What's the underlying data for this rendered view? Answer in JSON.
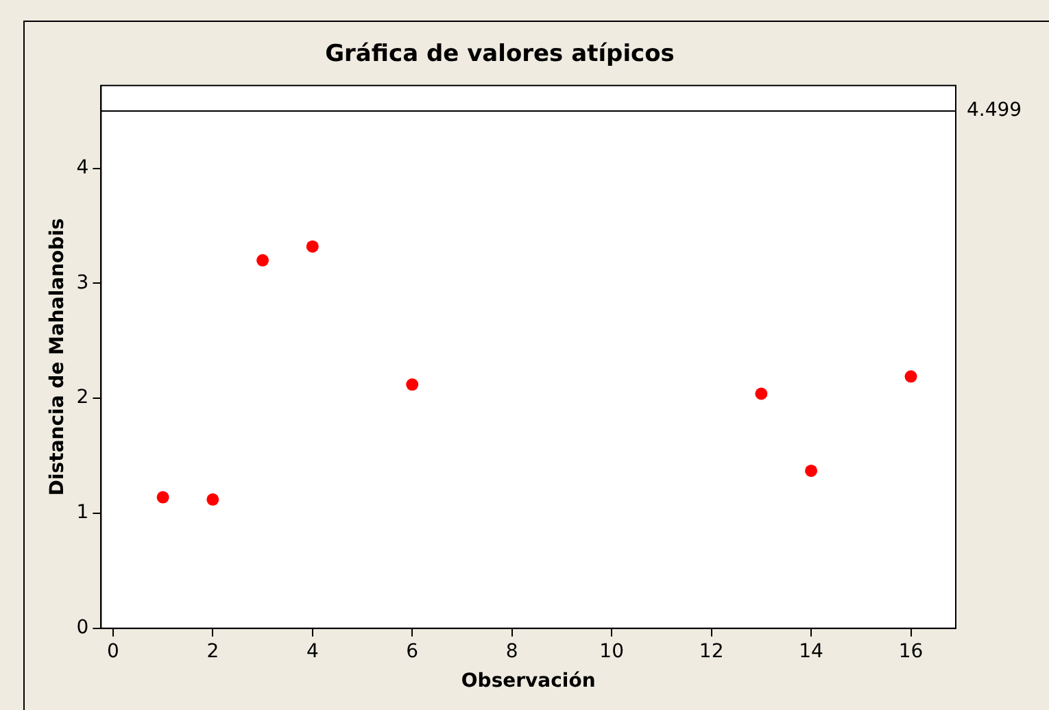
{
  "chart_data": {
    "type": "scatter",
    "title": "Gráfica de valores atípicos",
    "xlabel": "Observación",
    "ylabel": "Distancia de Mahalanobis",
    "x": [
      1,
      2,
      3,
      4,
      6,
      13,
      14,
      16
    ],
    "values": [
      1.14,
      1.12,
      3.2,
      3.32,
      2.12,
      2.04,
      1.37,
      2.19
    ],
    "color": "#ff0000",
    "marker": "circle",
    "xlim": [
      -0.24,
      16.9
    ],
    "xticks": [
      0,
      2,
      4,
      6,
      8,
      10,
      12,
      14,
      16
    ],
    "ylim": [
      0,
      4.72
    ],
    "yticks": [
      0,
      1,
      2,
      3,
      4
    ],
    "ref_lines": [
      {
        "axis": "y",
        "value": 4.499,
        "label": "4.499",
        "color": "#000000"
      }
    ],
    "grid": false,
    "legend": false
  }
}
